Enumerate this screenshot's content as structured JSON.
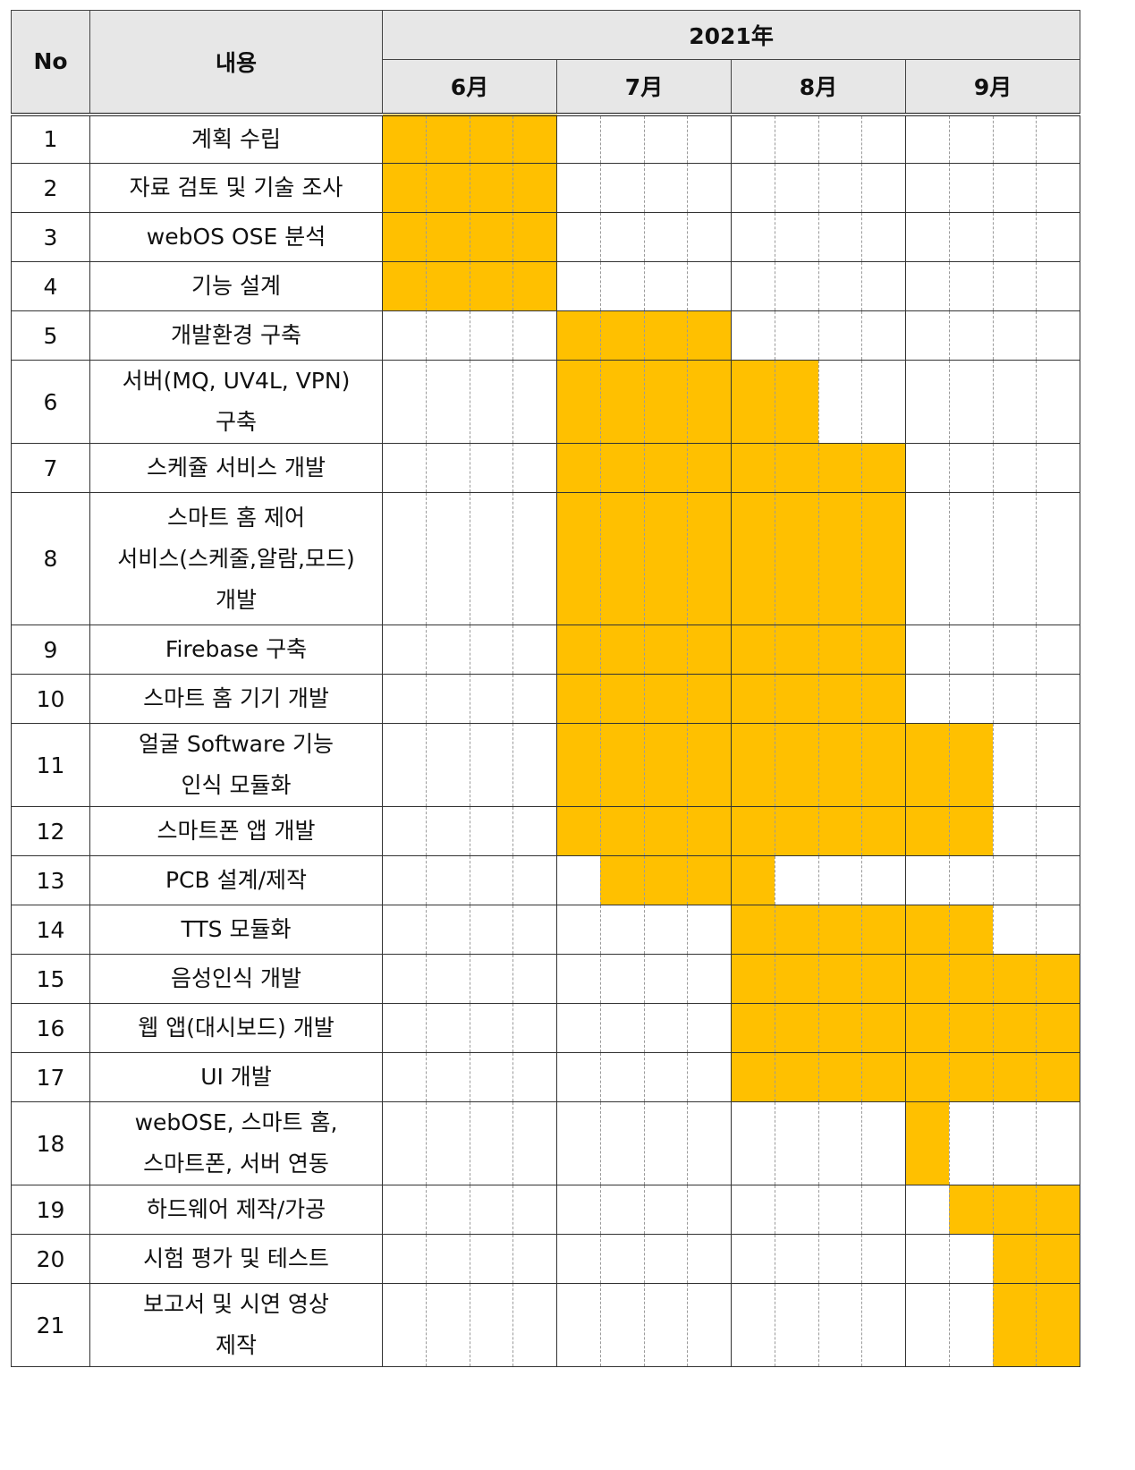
{
  "header": {
    "no_label": "No",
    "task_label": "내용",
    "year_label": "2021年",
    "months": [
      "6月",
      "7月",
      "8月",
      "9月"
    ]
  },
  "fill_color": "#ffc000",
  "weeks_per_month": 4,
  "tasks": [
    {
      "no": "1",
      "lines": [
        "계획 수립"
      ],
      "weeks": [
        1,
        4
      ]
    },
    {
      "no": "2",
      "lines": [
        "자료 검토 및 기술 조사"
      ],
      "weeks": [
        1,
        4
      ]
    },
    {
      "no": "3",
      "lines": [
        "webOS OSE 분석"
      ],
      "weeks": [
        1,
        4
      ]
    },
    {
      "no": "4",
      "lines": [
        "기능 설계"
      ],
      "weeks": [
        1,
        4
      ]
    },
    {
      "no": "5",
      "lines": [
        "개발환경 구축"
      ],
      "weeks": [
        5,
        8
      ]
    },
    {
      "no": "6",
      "lines": [
        "서버(MQ, UV4L, VPN)",
        "구축"
      ],
      "weeks": [
        5,
        10
      ]
    },
    {
      "no": "7",
      "lines": [
        "스케쥴 서비스 개발"
      ],
      "weeks": [
        5,
        12
      ]
    },
    {
      "no": "8",
      "lines": [
        "스마트 홈 제어",
        "서비스(스케줄,알람,모드)",
        "개발"
      ],
      "weeks": [
        5,
        12
      ]
    },
    {
      "no": "9",
      "lines": [
        "Firebase 구축"
      ],
      "weeks": [
        5,
        12
      ]
    },
    {
      "no": "10",
      "lines": [
        "스마트 홈 기기 개발"
      ],
      "weeks": [
        5,
        12
      ]
    },
    {
      "no": "11",
      "lines": [
        "얼굴 Software 기능",
        "인식 모듈화"
      ],
      "weeks": [
        5,
        14
      ]
    },
    {
      "no": "12",
      "lines": [
        "스마트폰 앱 개발"
      ],
      "weeks": [
        5,
        14
      ]
    },
    {
      "no": "13",
      "lines": [
        "PCB 설계/제작"
      ],
      "weeks": [
        6,
        9
      ]
    },
    {
      "no": "14",
      "lines": [
        "TTS 모듈화"
      ],
      "weeks": [
        9,
        14
      ]
    },
    {
      "no": "15",
      "lines": [
        "음성인식 개발"
      ],
      "weeks": [
        9,
        16
      ]
    },
    {
      "no": "16",
      "lines": [
        "웹 앱(대시보드) 개발"
      ],
      "weeks": [
        9,
        16
      ]
    },
    {
      "no": "17",
      "lines": [
        "UI 개발"
      ],
      "weeks": [
        9,
        16
      ]
    },
    {
      "no": "18",
      "lines": [
        "webOSE, 스마트 홈,",
        "스마트폰, 서버 연동"
      ],
      "weeks": [
        13,
        13
      ]
    },
    {
      "no": "19",
      "lines": [
        "하드웨어 제작/가공"
      ],
      "weeks": [
        14,
        16
      ]
    },
    {
      "no": "20",
      "lines": [
        "시험 평가 및 테스트"
      ],
      "weeks": [
        15,
        16
      ]
    },
    {
      "no": "21",
      "lines": [
        "보고서 및 시연 영상",
        "제작"
      ],
      "weeks": [
        15,
        16
      ]
    }
  ]
}
